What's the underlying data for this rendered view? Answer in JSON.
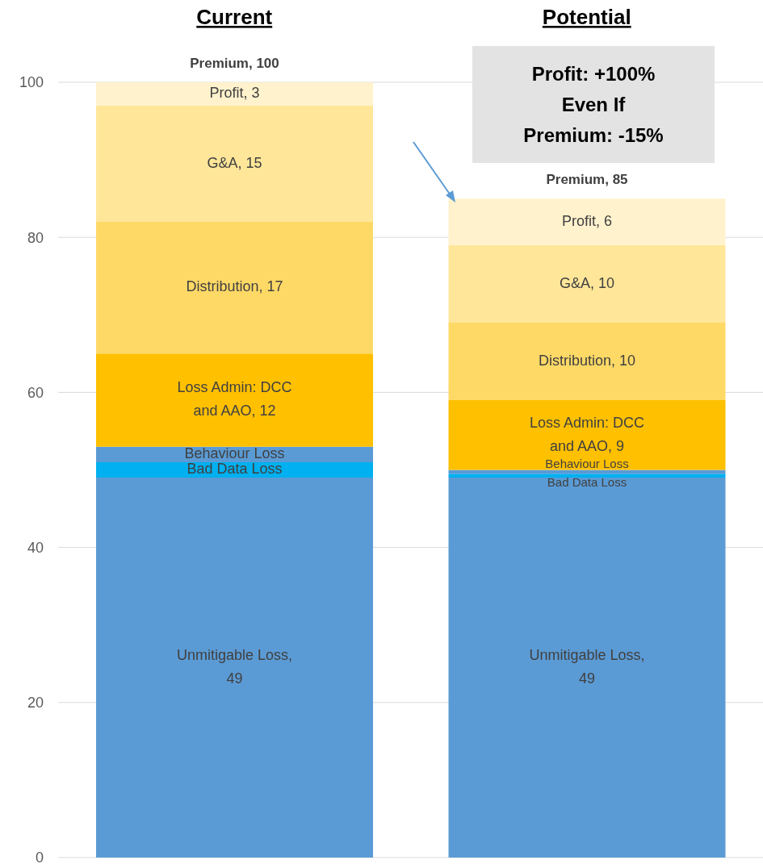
{
  "chart_data": {
    "type": "bar",
    "stacked": true,
    "categories": [
      "Current",
      "Potential"
    ],
    "series": [
      {
        "color": "#5b9bd5",
        "values": [
          49,
          49
        ],
        "value_labels": [
          "Unmitigable Loss, 49",
          "Unmitigable Loss, 49"
        ]
      },
      {
        "color": "#00b0f0",
        "values": [
          2,
          0.5
        ],
        "value_labels": [
          "Bad Data Loss",
          "Bad Data Loss"
        ]
      },
      {
        "color": "#5b9bd5",
        "values": [
          2,
          0.5
        ],
        "value_labels": [
          "Behaviour Loss",
          "Behaviour Loss"
        ]
      },
      {
        "color": "#ffc000",
        "values": [
          12,
          9
        ],
        "value_labels": [
          "Loss Admin: DCC and AAO, 12",
          "Loss Admin: DCC and AAO, 9"
        ]
      },
      {
        "color": "#ffd966",
        "values": [
          17,
          10
        ],
        "value_labels": [
          "Distribution, 17",
          "Distribution, 10"
        ]
      },
      {
        "color": "#ffe699",
        "values": [
          15,
          10
        ],
        "value_labels": [
          "G&A, 15",
          "G&A, 10"
        ]
      },
      {
        "color": "#fff2cc",
        "values": [
          3,
          6
        ],
        "value_labels": [
          "Profit, 3",
          "Profit, 6"
        ]
      }
    ],
    "totals": [
      "Premium, 100",
      "Premium, 85"
    ],
    "ylim": [
      0,
      100
    ],
    "yticks": [
      0,
      20,
      40,
      60,
      80,
      100
    ],
    "grid": "y",
    "legend": false,
    "annotations": [
      "Profit: +100% Even If Premium: -15%"
    ]
  }
}
